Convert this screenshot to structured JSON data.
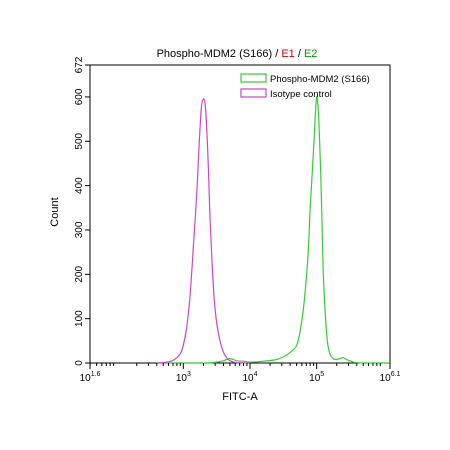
{
  "chart_data": {
    "type": "line",
    "title": {
      "parts": [
        {
          "text": "Phospho-MDM2 (S166)",
          "color": "#000000"
        },
        {
          "text": " / ",
          "color": "#000000"
        },
        {
          "text": "E1",
          "color": "#cc0000"
        },
        {
          "text": " / ",
          "color": "#000000"
        },
        {
          "text": "E2",
          "color": "#009900"
        }
      ]
    },
    "xlabel": "FITC-A",
    "ylabel": "Count",
    "xscale": "log",
    "xlim": [
      1.6,
      6.1
    ],
    "ylim": [
      0,
      672
    ],
    "x_ticks": [
      {
        "base": "10",
        "exp": "1.6",
        "value": 1.6
      },
      {
        "base": "10",
        "exp": "3",
        "value": 3
      },
      {
        "base": "10",
        "exp": "4",
        "value": 4
      },
      {
        "base": "10",
        "exp": "5",
        "value": 5
      },
      {
        "base": "10",
        "exp": "6.1",
        "value": 6.1
      }
    ],
    "y_ticks": [
      "0",
      "100",
      "200",
      "300",
      "400",
      "500",
      "600",
      "672"
    ],
    "legend_position": "top-right",
    "series": [
      {
        "name": "Phospho-MDM2 (S166)",
        "color": "#33cc33",
        "x_log10": [
          2.6,
          3.3,
          3.5,
          3.6,
          3.65,
          3.7,
          3.75,
          3.8,
          3.9,
          4.0,
          4.2,
          4.4,
          4.55,
          4.65,
          4.7,
          4.75,
          4.8,
          4.85,
          4.88,
          4.9,
          4.93,
          4.96,
          4.98,
          5.0,
          5.02,
          5.04,
          5.06,
          5.08,
          5.1,
          5.13,
          5.16,
          5.2,
          5.25,
          5.3,
          5.35,
          5.4,
          5.45,
          5.5,
          5.55,
          5.6,
          5.7,
          6.1
        ],
        "y": [
          0,
          0,
          2,
          5,
          8,
          10,
          8,
          5,
          4,
          2,
          4,
          8,
          18,
          30,
          40,
          70,
          120,
          200,
          270,
          340,
          420,
          500,
          560,
          600,
          580,
          520,
          430,
          320,
          200,
          110,
          50,
          20,
          10,
          8,
          10,
          12,
          8,
          5,
          2,
          1,
          0,
          0
        ]
      },
      {
        "name": "Isotype control",
        "color": "#cc44cc",
        "x_log10": [
          2.6,
          2.75,
          2.85,
          2.95,
          3.0,
          3.05,
          3.1,
          3.15,
          3.2,
          3.24,
          3.27,
          3.3,
          3.33,
          3.36,
          3.38,
          3.4,
          3.43,
          3.46,
          3.5,
          3.55,
          3.6,
          3.65,
          3.7,
          3.8,
          4.0
        ],
        "y": [
          0,
          2,
          6,
          20,
          40,
          80,
          150,
          260,
          380,
          500,
          575,
          595,
          580,
          500,
          420,
          330,
          230,
          150,
          90,
          50,
          25,
          12,
          5,
          1,
          0
        ]
      }
    ]
  }
}
